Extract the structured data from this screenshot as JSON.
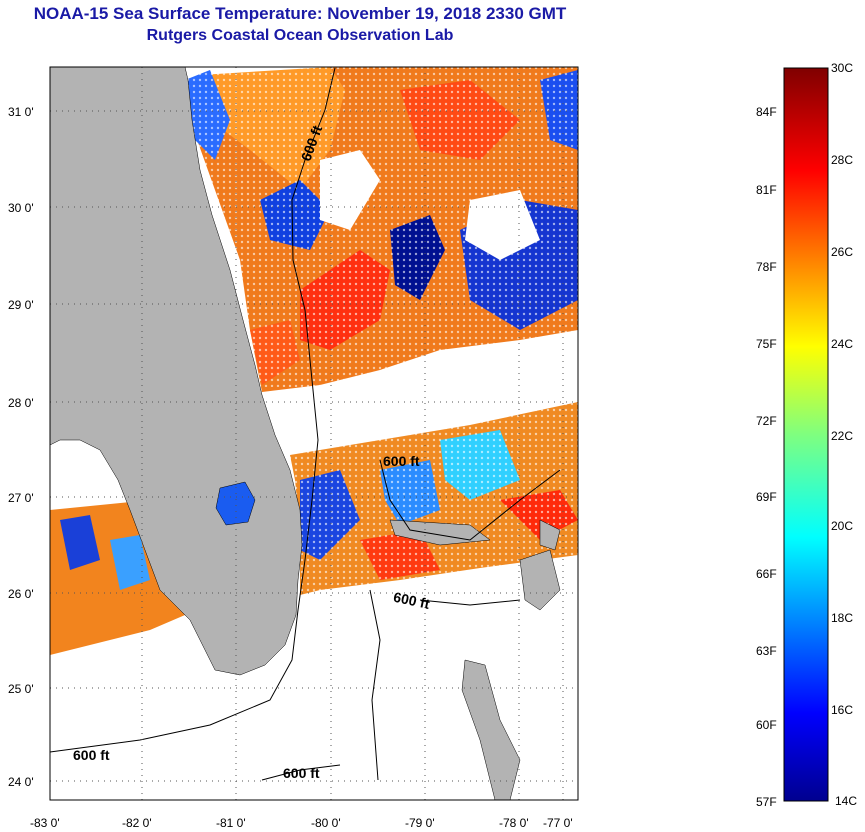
{
  "title": {
    "line1": "NOAA-15 Sea Surface Temperature:  November 19, 2018 2330 GMT",
    "line2": "Rutgers Coastal Ocean Observation Lab"
  },
  "map": {
    "lat_labels": [
      "31 0'",
      "30 0'",
      "29 0'",
      "28 0'",
      "27 0'",
      "26 0'",
      "25 0'",
      "24 0'"
    ],
    "lon_labels": [
      "-83 0'",
      "-82 0'",
      "-81 0'",
      "-80 0'",
      "-79 0'",
      "-78 0'",
      "-77 0'"
    ],
    "contour_labels": [
      "600 ft",
      "600 ft",
      "600 ft",
      "600 ft",
      "600 ft"
    ],
    "colors": {
      "land": "#b3b3b3",
      "no_data": "#ffffff"
    }
  },
  "colorbar": {
    "celsius": [
      "30C",
      "28C",
      "26C",
      "24C",
      "22C",
      "20C",
      "18C",
      "16C",
      "14C"
    ],
    "fahrenheit": [
      "84F",
      "81F",
      "78F",
      "75F",
      "72F",
      "69F",
      "66F",
      "63F",
      "60F",
      "57F"
    ],
    "range_c": [
      14,
      30
    ]
  }
}
